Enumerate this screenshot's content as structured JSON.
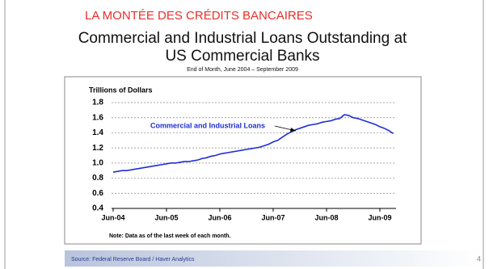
{
  "header": {
    "banner": "LA MONTÉE DES CRÉDITS BANCAIRES"
  },
  "chart_data": {
    "type": "line",
    "title": [
      "Commercial and Industrial Loans Outstanding at",
      "US Commercial Banks"
    ],
    "subtitle": "End of Month, June  2004 – September 2009",
    "y_label": "Trillions of Dollars",
    "categories": [
      "Jun-04",
      null,
      null,
      null,
      null,
      null,
      null,
      null,
      null,
      null,
      null,
      null,
      "Jun-05",
      null,
      null,
      null,
      null,
      null,
      null,
      null,
      null,
      null,
      null,
      null,
      "Jun-06",
      null,
      null,
      null,
      null,
      null,
      null,
      null,
      null,
      null,
      null,
      null,
      "Jun-07",
      null,
      null,
      null,
      null,
      null,
      null,
      null,
      null,
      null,
      null,
      null,
      "Jun-08",
      null,
      null,
      null,
      null,
      null,
      null,
      null,
      null,
      null,
      null,
      null,
      "Jun-09",
      null,
      null,
      null
    ],
    "series": [
      {
        "name": "Commercial and Industrial Loans",
        "color": "#1f2fd6",
        "values": [
          0.88,
          0.89,
          0.9,
          0.9,
          0.91,
          0.92,
          0.93,
          0.94,
          0.95,
          0.96,
          0.97,
          0.98,
          0.99,
          1.0,
          1.0,
          1.01,
          1.02,
          1.02,
          1.03,
          1.04,
          1.06,
          1.07,
          1.09,
          1.1,
          1.12,
          1.13,
          1.14,
          1.15,
          1.16,
          1.17,
          1.18,
          1.19,
          1.2,
          1.21,
          1.23,
          1.25,
          1.28,
          1.3,
          1.34,
          1.38,
          1.41,
          1.44,
          1.46,
          1.48,
          1.5,
          1.51,
          1.52,
          1.54,
          1.55,
          1.56,
          1.58,
          1.59,
          1.64,
          1.63,
          1.6,
          1.59,
          1.57,
          1.55,
          1.53,
          1.51,
          1.48,
          1.46,
          1.43,
          1.39
        ]
      }
    ],
    "ylim": [
      0.4,
      1.8
    ],
    "yticks": [
      0.4,
      0.6,
      0.8,
      {
        "value": 1,
        "label": "1.0"
      },
      1.2,
      1.4,
      1.6,
      1.8
    ],
    "grid": true,
    "note": "Note:  Data as of the last week of each month."
  },
  "footer": {
    "source": "Source: Federal Reserve Board  /  Haver Analytics",
    "page": "4"
  }
}
